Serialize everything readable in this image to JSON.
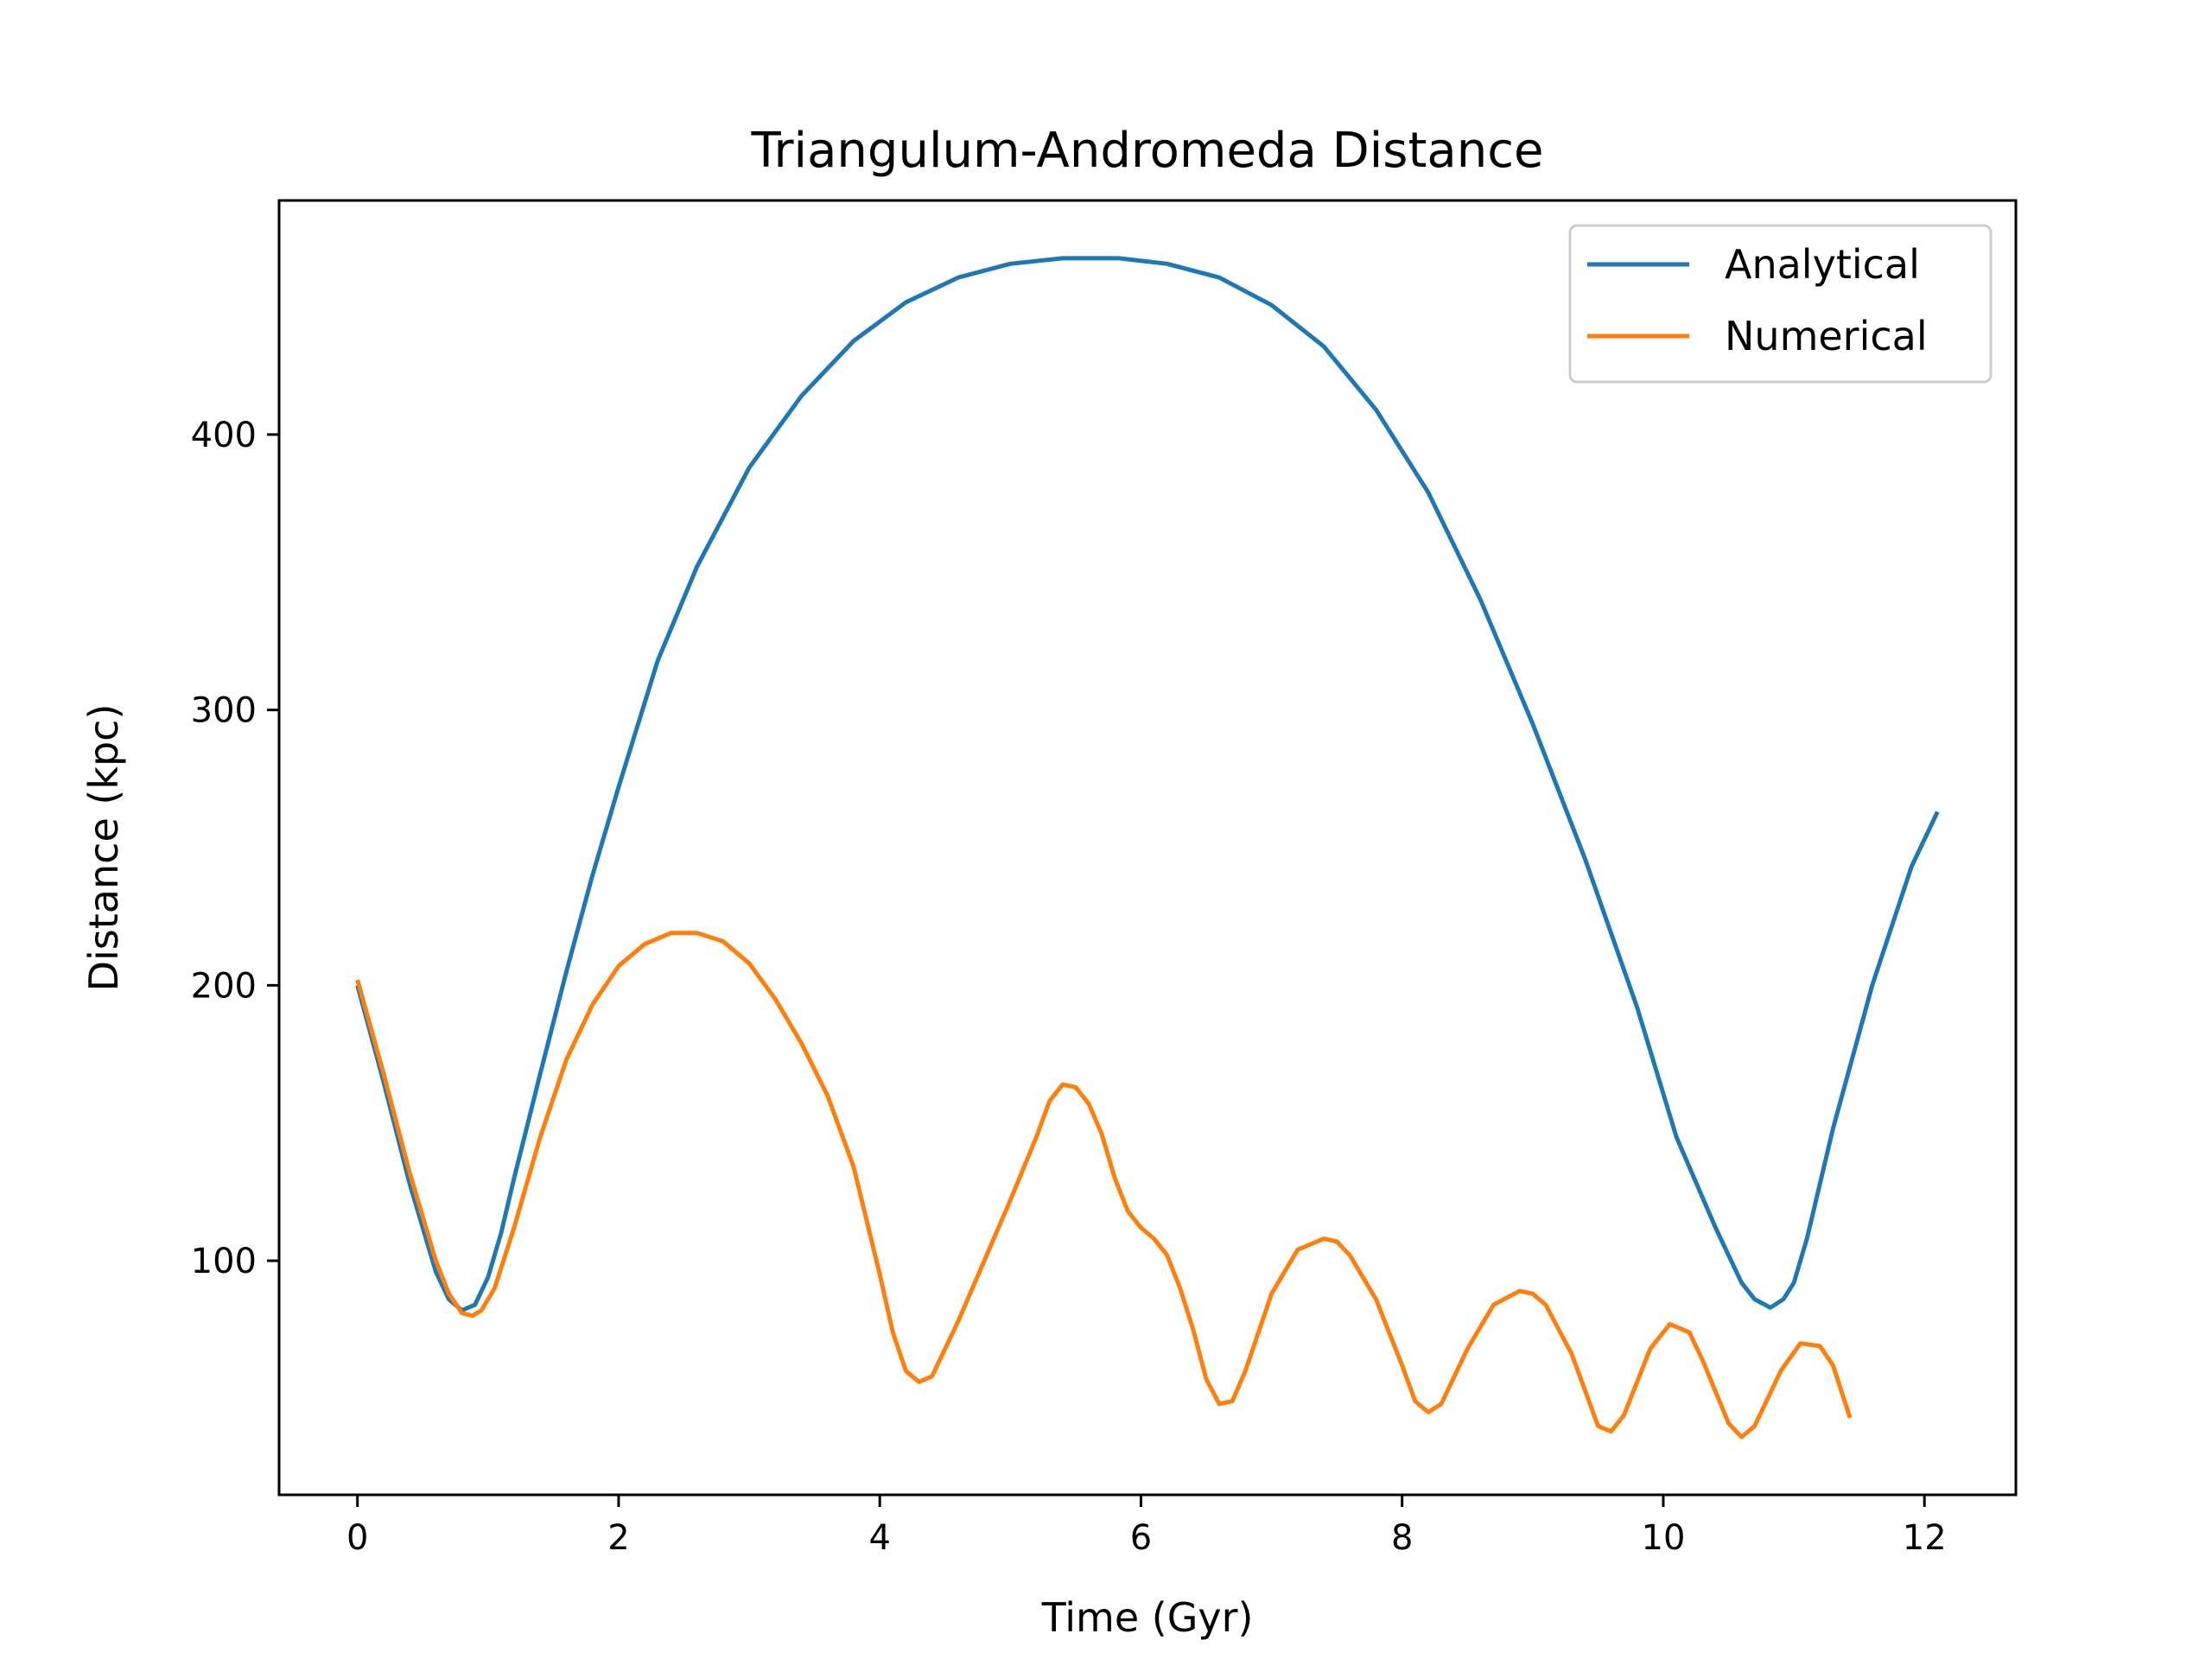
{
  "chart_data": {
    "type": "line",
    "title": "Triangulum-Andromeda Distance",
    "xlabel": "Time (Gyr)",
    "ylabel": "Distance (kpc)",
    "xlim": [
      -0.6,
      12.7
    ],
    "ylim": [
      15,
      485
    ],
    "xticks": [
      0,
      2,
      4,
      6,
      8,
      10,
      12
    ],
    "yticks": [
      100,
      200,
      300,
      400
    ],
    "grid": false,
    "legend": "top-right",
    "series": [
      {
        "name": "Analytical",
        "color": "#1f77b4",
        "x": [
          0.0,
          0.2,
          0.4,
          0.6,
          0.7,
          0.8,
          0.9,
          1.0,
          1.1,
          1.2,
          1.4,
          1.6,
          1.8,
          2.0,
          2.3,
          2.6,
          3.0,
          3.4,
          3.8,
          4.2,
          4.6,
          5.0,
          5.4,
          5.83,
          6.2,
          6.6,
          7.0,
          7.4,
          7.8,
          8.2,
          8.6,
          9.0,
          9.4,
          9.8,
          10.1,
          10.4,
          10.6,
          10.7,
          10.82,
          10.92,
          11.0,
          11.1,
          11.3,
          11.6,
          11.9,
          12.1
        ],
        "y": [
          200,
          165,
          128,
          96,
          86,
          82,
          84,
          94,
          110,
          130,
          168,
          205,
          240,
          272,
          318,
          352,
          388,
          414,
          434,
          448,
          457,
          462,
          464,
          464,
          462,
          457,
          447,
          432,
          409,
          379,
          340,
          295,
          246,
          192,
          145,
          112,
          92,
          86,
          83,
          86,
          92,
          108,
          148,
          200,
          243,
          263
        ]
      },
      {
        "name": "Numerical",
        "color": "#ff7f0e",
        "x": [
          0.0,
          0.2,
          0.4,
          0.6,
          0.7,
          0.8,
          0.88,
          0.95,
          1.05,
          1.2,
          1.4,
          1.6,
          1.8,
          2.0,
          2.2,
          2.4,
          2.6,
          2.8,
          3.0,
          3.2,
          3.4,
          3.6,
          3.8,
          4.0,
          4.1,
          4.2,
          4.3,
          4.4,
          4.6,
          4.8,
          5.0,
          5.2,
          5.3,
          5.4,
          5.5,
          5.6,
          5.7,
          5.8,
          5.9,
          6.0,
          6.1,
          6.2,
          6.3,
          6.4,
          6.5,
          6.6,
          6.7,
          6.8,
          7.0,
          7.2,
          7.4,
          7.5,
          7.6,
          7.8,
          8.0,
          8.1,
          8.2,
          8.3,
          8.5,
          8.7,
          8.9,
          9.0,
          9.1,
          9.3,
          9.5,
          9.6,
          9.7,
          9.9,
          10.05,
          10.2,
          10.3,
          10.5,
          10.6,
          10.7,
          10.9,
          11.05,
          11.2,
          11.3,
          11.43
        ],
        "y": [
          202,
          168,
          132,
          100,
          88,
          81,
          80,
          82,
          90,
          112,
          145,
          173,
          193,
          207,
          215,
          219,
          219,
          216,
          208,
          195,
          179,
          160,
          134,
          95,
          74,
          60,
          56,
          58,
          78,
          100,
          122,
          145,
          158,
          164,
          163,
          157,
          146,
          130,
          118,
          112,
          108,
          102,
          90,
          75,
          57,
          48,
          49,
          60,
          88,
          104,
          108,
          107,
          102,
          86,
          62,
          49,
          45,
          48,
          68,
          84,
          89,
          88,
          84,
          66,
          40,
          38,
          44,
          68,
          77,
          74,
          64,
          41,
          36,
          40,
          60,
          70,
          69,
          62,
          43
        ]
      }
    ]
  }
}
